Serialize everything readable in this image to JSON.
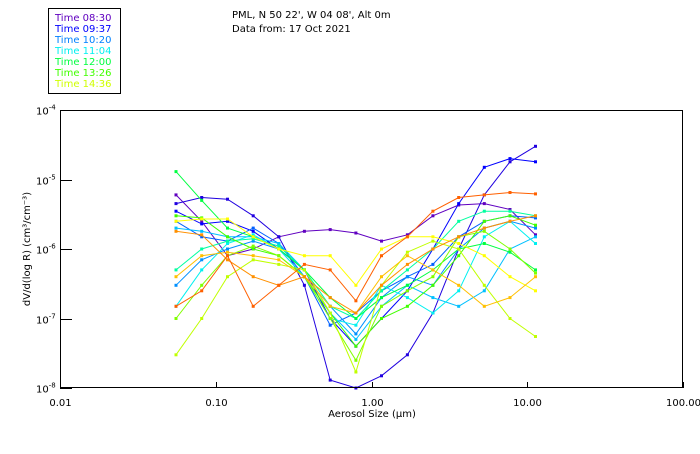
{
  "header": {
    "line1": "PML, N 50 22', W 04 08', Alt 0m",
    "line2": "Data from: 17 Oct 2021"
  },
  "legend": [
    {
      "label": "Time 08:30",
      "color": "#6000c0"
    },
    {
      "label": "Time 09:37",
      "color": "#0000ff"
    },
    {
      "label": "Time 10:20",
      "color": "#0080ff"
    },
    {
      "label": "Time 11:04",
      "color": "#00f0f0"
    },
    {
      "label": "Time 12:00",
      "color": "#00ff40"
    },
    {
      "label": "Time 13:26",
      "color": "#40ff00"
    },
    {
      "label": "Time 14:36",
      "color": "#d0ff00"
    }
  ],
  "chart_data": {
    "type": "line",
    "title": "PML, N 50 22', W 04 08', Alt 0m",
    "xlabel": "Aerosol Size (µm)",
    "ylabel": "dV/d(log R) (cm³/cm⁻³)",
    "xscale": "log",
    "yscale": "log",
    "xlim": [
      0.01,
      100
    ],
    "ylim": [
      1e-08,
      0.0001
    ],
    "xticks": [
      "0.01",
      "0.10",
      "1.00",
      "10.00",
      "100.00"
    ],
    "xtick_values": [
      0.01,
      0.1,
      1,
      10,
      100
    ],
    "yticks": [
      {
        "base": "10",
        "exp": "-4",
        "value": 0.0001
      },
      {
        "base": "10",
        "exp": "-5",
        "value": 1e-05
      },
      {
        "base": "10",
        "exp": "-6",
        "value": 1e-06
      },
      {
        "base": "10",
        "exp": "-7",
        "value": 1e-07
      },
      {
        "base": "10",
        "exp": "-8",
        "value": 1e-08
      }
    ],
    "legend_position": "top-left (outside)",
    "x": [
      0.0556,
      0.0813,
      0.119,
      0.174,
      0.254,
      0.371,
      0.543,
      0.794,
      1.16,
      1.7,
      2.48,
      3.63,
      5.3,
      7.75,
      11.3
    ],
    "series": [
      {
        "color": "#6000c0",
        "values": [
          6e-06,
          2.5e-06,
          8e-07,
          1e-06,
          1.5e-06,
          1.8e-06,
          1.9e-06,
          1.7e-06,
          1.3e-06,
          1.6e-06,
          3e-06,
          4.3e-06,
          4.5e-06,
          3.7e-06,
          1.6e-06
        ]
      },
      {
        "color": "#2000e0",
        "values": [
          4.5e-06,
          5.5e-06,
          5.2e-06,
          3e-06,
          1.5e-06,
          3e-07,
          1.3e-08,
          1e-08,
          1.5e-08,
          3e-08,
          1.2e-07,
          1e-06,
          6e-06,
          1.8e-05,
          3e-05
        ]
      },
      {
        "color": "#0000ff",
        "values": [
          3.5e-06,
          2.3e-06,
          2.5e-06,
          1.8e-06,
          1e-06,
          5e-07,
          1e-07,
          4e-08,
          1e-07,
          2.5e-07,
          1e-06,
          4.5e-06,
          1.5e-05,
          2e-05,
          1.8e-05
        ]
      },
      {
        "color": "#0060ff",
        "values": [
          2.5e-06,
          1.5e-06,
          1.3e-06,
          2e-06,
          1.2e-06,
          4e-07,
          8e-08,
          1.2e-07,
          2.5e-07,
          4e-07,
          6e-07,
          1.5e-06,
          2.5e-06,
          3e-06,
          2.8e-06
        ]
      },
      {
        "color": "#0090ff",
        "values": [
          3e-07,
          7e-07,
          1e-06,
          1.3e-06,
          1e-06,
          4e-07,
          1.5e-07,
          6e-08,
          2e-07,
          4e-07,
          3e-07,
          1e-06,
          2e-06,
          2.5e-06,
          2e-06
        ]
      },
      {
        "color": "#00c0ff",
        "values": [
          2e-06,
          1.8e-06,
          1.5e-06,
          1.5e-06,
          1.2e-06,
          5e-07,
          1.2e-07,
          5e-08,
          1.5e-07,
          3e-07,
          2e-07,
          1.5e-07,
          2.5e-07,
          1e-06,
          1.5e-06
        ]
      },
      {
        "color": "#00f0f0",
        "values": [
          1.5e-07,
          5e-07,
          1.2e-06,
          1.6e-06,
          1e-06,
          4e-07,
          1e-07,
          8e-08,
          3e-07,
          2e-07,
          1.2e-07,
          2.5e-07,
          1.5e-06,
          2.5e-06,
          1.2e-06
        ]
      },
      {
        "color": "#00ffa0",
        "values": [
          5e-07,
          1e-06,
          1.3e-06,
          1.4e-06,
          1.1e-06,
          5e-07,
          1.5e-07,
          1e-07,
          2.5e-07,
          5e-07,
          1e-06,
          2.5e-06,
          3.5e-06,
          3.5e-06,
          3e-06
        ]
      },
      {
        "color": "#00ff40",
        "values": [
          1.3e-05,
          5e-06,
          2e-06,
          1.5e-06,
          1e-06,
          5e-07,
          2e-07,
          1e-07,
          2e-07,
          3e-07,
          5e-07,
          1e-06,
          1.2e-06,
          9e-07,
          5e-07
        ]
      },
      {
        "color": "#40ff00",
        "values": [
          3e-06,
          2.8e-06,
          1.5e-06,
          1e-06,
          8e-07,
          4e-07,
          1.2e-07,
          4e-08,
          1e-07,
          1.5e-07,
          3e-07,
          8e-07,
          2.5e-06,
          3e-06,
          2.2e-06
        ]
      },
      {
        "color": "#80ff00",
        "values": [
          1e-07,
          3e-07,
          8e-07,
          1.1e-06,
          8e-07,
          4e-07,
          1e-07,
          2.5e-08,
          1.5e-07,
          2.5e-07,
          4e-07,
          1.5e-06,
          1.8e-06,
          1e-06,
          4.5e-07
        ]
      },
      {
        "color": "#c0ff00",
        "values": [
          3e-08,
          1e-07,
          4e-07,
          7e-07,
          6e-07,
          5e-07,
          1.2e-07,
          1.7e-08,
          3e-07,
          9e-07,
          1.3e-06,
          1e-06,
          3e-07,
          1e-07,
          5.5e-08
        ]
      },
      {
        "color": "#ffff00",
        "values": [
          2.5e-06,
          2.7e-06,
          2.7e-06,
          1.5e-06,
          1e-06,
          8e-07,
          8e-07,
          3e-07,
          1e-06,
          1.5e-06,
          1.5e-06,
          1.2e-06,
          8e-07,
          4e-07,
          2.5e-07
        ]
      },
      {
        "color": "#ffc000",
        "values": [
          4e-07,
          8e-07,
          9e-07,
          8e-07,
          7e-07,
          4e-07,
          1.5e-07,
          1.2e-07,
          4e-07,
          8e-07,
          5e-07,
          3e-07,
          1.5e-07,
          2e-07,
          4e-07
        ]
      },
      {
        "color": "#ff9000",
        "values": [
          1.8e-06,
          1.6e-06,
          7e-07,
          4e-07,
          3e-07,
          4e-07,
          2e-07,
          1.2e-07,
          3e-07,
          6e-07,
          1e-06,
          1.5e-06,
          2e-06,
          2.5e-06,
          3e-06
        ]
      },
      {
        "color": "#ff6000",
        "values": [
          1.5e-07,
          2.5e-07,
          8e-07,
          1.5e-07,
          3e-07,
          6e-07,
          5e-07,
          1.8e-07,
          8e-07,
          1.5e-06,
          3.5e-06,
          5.5e-06,
          6e-06,
          6.5e-06,
          6.2e-06
        ]
      }
    ]
  }
}
